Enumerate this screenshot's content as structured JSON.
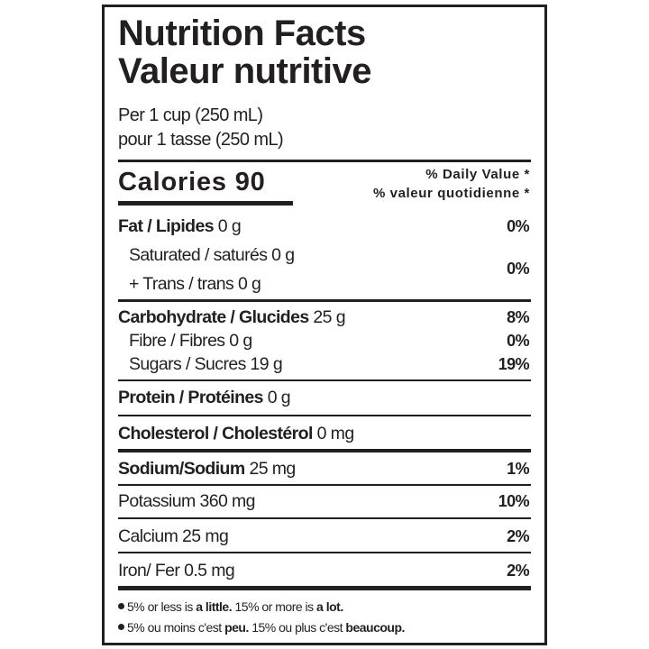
{
  "title_en": "Nutrition Facts",
  "title_fr": "Valeur nutritive",
  "serving_en": "Per 1 cup (250 mL)",
  "serving_fr": "pour 1 tasse (250 mL)",
  "calories_label": "Calories 90",
  "dv_en": "% Daily Value *",
  "dv_fr": "% valeur quotidienne *",
  "rows": [
    {
      "label": "Fat / Lipides",
      "amount": " 0 g",
      "dv": "0%"
    },
    {
      "label": "Saturated / saturés 0 g",
      "amount": "",
      "dv": ""
    },
    {
      "label": "+ Trans / trans 0 g",
      "amount": "",
      "dv": "0%"
    },
    {
      "label": "Carbohydrate / Glucides",
      "amount": " 25 g",
      "dv": "8%"
    },
    {
      "label": "Fibre / Fibres 0 g",
      "amount": "",
      "dv": "0%"
    },
    {
      "label": "Sugars / Sucres 19 g",
      "amount": "",
      "dv": "19%"
    },
    {
      "label": "Protein / Protéines",
      "amount": " 0 g",
      "dv": ""
    },
    {
      "label": "Cholesterol / Cholestérol",
      "amount": " 0 mg",
      "dv": ""
    },
    {
      "label": "Sodium/Sodium",
      "amount": " 25 mg",
      "dv": "1%"
    },
    {
      "label": "Potassium 360 mg",
      "amount": "",
      "dv": "10%"
    },
    {
      "label": "Calcium 25 mg",
      "amount": "",
      "dv": "2%"
    },
    {
      "label": "Iron/ Fer 0.5 mg",
      "amount": "",
      "dv": "2%"
    }
  ],
  "footnote_en": {
    "a": "5% or less is ",
    "b": "a little.",
    "c": " 15% or more is ",
    "d": "a lot."
  },
  "footnote_fr": {
    "a": "5% ou moins c'est ",
    "b": "peu.",
    "c": " 15% ou plus c'est ",
    "d": "beaucoup."
  }
}
